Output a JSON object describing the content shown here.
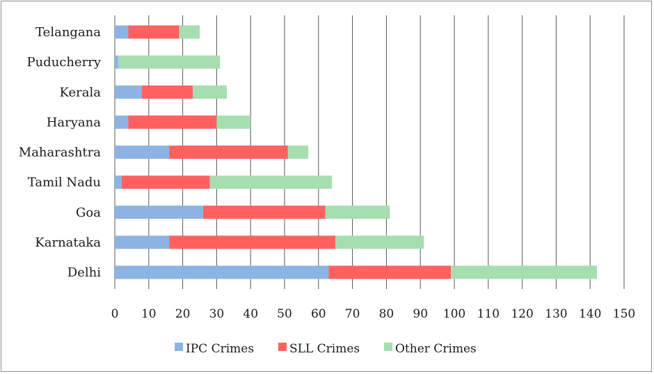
{
  "chart_data": {
    "type": "bar",
    "orientation": "horizontal",
    "stacked": true,
    "categories": [
      "Telangana",
      "Puducherry",
      "Kerala",
      "Haryana",
      "Maharashtra",
      "Tamil Nadu",
      "Goa",
      "Karnataka",
      "Delhi"
    ],
    "series": [
      {
        "name": "IPC Crimes",
        "color": "#8db3e2",
        "values": [
          4,
          1,
          8,
          4,
          16,
          2,
          26,
          16,
          63
        ]
      },
      {
        "name": "SLL Crimes",
        "color": "#ff6161",
        "values": [
          15,
          0,
          15,
          26,
          35,
          26,
          36,
          49,
          36
        ]
      },
      {
        "name": "Other Crimes",
        "color": "#a6deb0",
        "values": [
          6,
          30,
          10,
          10,
          6,
          36,
          19,
          26,
          43
        ]
      }
    ],
    "xlim": [
      0,
      150
    ],
    "xticks": [
      "0",
      "10",
      "20",
      "30",
      "40",
      "50",
      "60",
      "70",
      "80",
      "90",
      "100",
      "110",
      "120",
      "130",
      "140",
      "150"
    ],
    "grid": "vertical",
    "legend_position": "bottom",
    "title": "",
    "xlabel": "",
    "ylabel": ""
  }
}
